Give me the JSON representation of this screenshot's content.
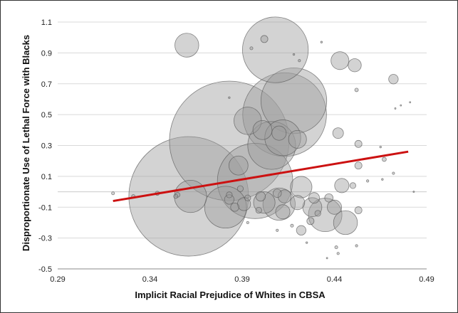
{
  "chart_data": {
    "type": "scatter",
    "title": "",
    "xlabel": "Implicit Racial Prejudice of Whites in CBSA",
    "ylabel": "Disproportionate Use of Lethal Force with Blacks",
    "xlim": [
      0.29,
      0.49
    ],
    "ylim": [
      -0.5,
      1.1
    ],
    "x_ticks": [
      "0.29",
      "0.34",
      "0.39",
      "0.44",
      "0.49"
    ],
    "y_ticks": [
      "-0.5",
      "-0.3",
      "-0.1",
      "0.1",
      "0.3",
      "0.5",
      "0.7",
      "0.9",
      "1.1"
    ],
    "grid": "horizontal",
    "bubble_color": "#9e9e9e",
    "trendline": {
      "color": "#cc1111",
      "x": [
        0.32,
        0.48
      ],
      "y": [
        -0.06,
        0.26
      ]
    },
    "points": [
      {
        "x": 0.361,
        "y": -0.03,
        "r": 1.0
      },
      {
        "x": 0.383,
        "y": 0.33,
        "r": 1.0
      },
      {
        "x": 0.413,
        "y": 0.5,
        "r": 0.7
      },
      {
        "x": 0.397,
        "y": 0.07,
        "r": 0.63
      },
      {
        "x": 0.418,
        "y": 0.59,
        "r": 0.55
      },
      {
        "x": 0.408,
        "y": 0.92,
        "r": 0.55
      },
      {
        "x": 0.406,
        "y": 0.3,
        "r": 0.4
      },
      {
        "x": 0.381,
        "y": -0.1,
        "r": 0.35
      },
      {
        "x": 0.412,
        "y": 0.35,
        "r": 0.3
      },
      {
        "x": 0.435,
        "y": -0.15,
        "r": 0.28
      },
      {
        "x": 0.41,
        "y": -0.08,
        "r": 0.27
      },
      {
        "x": 0.362,
        "y": -0.03,
        "r": 0.27
      },
      {
        "x": 0.36,
        "y": 0.95,
        "r": 0.2
      },
      {
        "x": 0.393,
        "y": 0.46,
        "r": 0.23
      },
      {
        "x": 0.446,
        "y": -0.2,
        "r": 0.2
      },
      {
        "x": 0.422,
        "y": 0.03,
        "r": 0.18
      },
      {
        "x": 0.402,
        "y": -0.07,
        "r": 0.18
      },
      {
        "x": 0.428,
        "y": -0.1,
        "r": 0.16
      },
      {
        "x": 0.401,
        "y": 0.4,
        "r": 0.16
      },
      {
        "x": 0.388,
        "y": 0.17,
        "r": 0.16
      },
      {
        "x": 0.42,
        "y": 0.34,
        "r": 0.15
      },
      {
        "x": 0.443,
        "y": 0.85,
        "r": 0.15
      },
      {
        "x": 0.41,
        "y": 0.38,
        "r": 0.12
      },
      {
        "x": 0.412,
        "y": -0.13,
        "r": 0.12
      },
      {
        "x": 0.44,
        "y": -0.1,
        "r": 0.12
      },
      {
        "x": 0.42,
        "y": -0.07,
        "r": 0.12
      },
      {
        "x": 0.444,
        "y": 0.04,
        "r": 0.12
      },
      {
        "x": 0.391,
        "y": -0.08,
        "r": 0.11
      },
      {
        "x": 0.413,
        "y": -0.03,
        "r": 0.11
      },
      {
        "x": 0.451,
        "y": 0.82,
        "r": 0.11
      },
      {
        "x": 0.442,
        "y": 0.38,
        "r": 0.09
      },
      {
        "x": 0.429,
        "y": -0.04,
        "r": 0.09
      },
      {
        "x": 0.422,
        "y": -0.25,
        "r": 0.08
      },
      {
        "x": 0.472,
        "y": 0.73,
        "r": 0.08
      },
      {
        "x": 0.383,
        "y": -0.05,
        "r": 0.08
      },
      {
        "x": 0.386,
        "y": -0.1,
        "r": 0.07
      },
      {
        "x": 0.4,
        "y": -0.03,
        "r": 0.08
      },
      {
        "x": 0.437,
        "y": -0.04,
        "r": 0.07
      },
      {
        "x": 0.409,
        "y": -0.01,
        "r": 0.07
      },
      {
        "x": 0.402,
        "y": 0.99,
        "r": 0.06
      },
      {
        "x": 0.453,
        "y": 0.31,
        "r": 0.06
      },
      {
        "x": 0.453,
        "y": 0.17,
        "r": 0.06
      },
      {
        "x": 0.453,
        "y": -0.12,
        "r": 0.06
      },
      {
        "x": 0.427,
        "y": -0.19,
        "r": 0.06
      },
      {
        "x": 0.393,
        "y": -0.04,
        "r": 0.05
      },
      {
        "x": 0.399,
        "y": -0.12,
        "r": 0.05
      },
      {
        "x": 0.45,
        "y": 0.04,
        "r": 0.05
      },
      {
        "x": 0.383,
        "y": -0.02,
        "r": 0.05
      },
      {
        "x": 0.389,
        "y": 0.02,
        "r": 0.05
      },
      {
        "x": 0.431,
        "y": -0.14,
        "r": 0.05
      },
      {
        "x": 0.355,
        "y": -0.02,
        "r": 0.04
      },
      {
        "x": 0.344,
        "y": -0.01,
        "r": 0.035
      },
      {
        "x": 0.354,
        "y": -0.03,
        "r": 0.035
      },
      {
        "x": 0.331,
        "y": -0.03,
        "r": 0.03
      },
      {
        "x": 0.32,
        "y": -0.01,
        "r": 0.025
      },
      {
        "x": 0.467,
        "y": 0.21,
        "r": 0.035
      },
      {
        "x": 0.452,
        "y": 0.66,
        "r": 0.03
      },
      {
        "x": 0.441,
        "y": -0.36,
        "r": 0.025
      },
      {
        "x": 0.442,
        "y": -0.4,
        "r": 0.02
      },
      {
        "x": 0.417,
        "y": -0.22,
        "r": 0.025
      },
      {
        "x": 0.409,
        "y": -0.25,
        "r": 0.02
      },
      {
        "x": 0.452,
        "y": -0.35,
        "r": 0.02
      },
      {
        "x": 0.421,
        "y": 0.85,
        "r": 0.02
      },
      {
        "x": 0.418,
        "y": 0.89,
        "r": 0.015
      },
      {
        "x": 0.433,
        "y": 0.97,
        "r": 0.015
      },
      {
        "x": 0.395,
        "y": 0.93,
        "r": 0.025
      },
      {
        "x": 0.472,
        "y": 0.12,
        "r": 0.02
      },
      {
        "x": 0.458,
        "y": 0.07,
        "r": 0.02
      },
      {
        "x": 0.466,
        "y": 0.08,
        "r": 0.015
      },
      {
        "x": 0.465,
        "y": 0.29,
        "r": 0.015
      },
      {
        "x": 0.473,
        "y": 0.54,
        "r": 0.01
      },
      {
        "x": 0.476,
        "y": 0.56,
        "r": 0.01
      },
      {
        "x": 0.383,
        "y": 0.61,
        "r": 0.015
      },
      {
        "x": 0.393,
        "y": -0.2,
        "r": 0.02
      },
      {
        "x": 0.425,
        "y": -0.33,
        "r": 0.015
      },
      {
        "x": 0.436,
        "y": -0.43,
        "r": 0.01
      },
      {
        "x": 0.481,
        "y": 0.58,
        "r": 0.01
      },
      {
        "x": 0.483,
        "y": 0.0,
        "r": 0.01
      }
    ]
  }
}
